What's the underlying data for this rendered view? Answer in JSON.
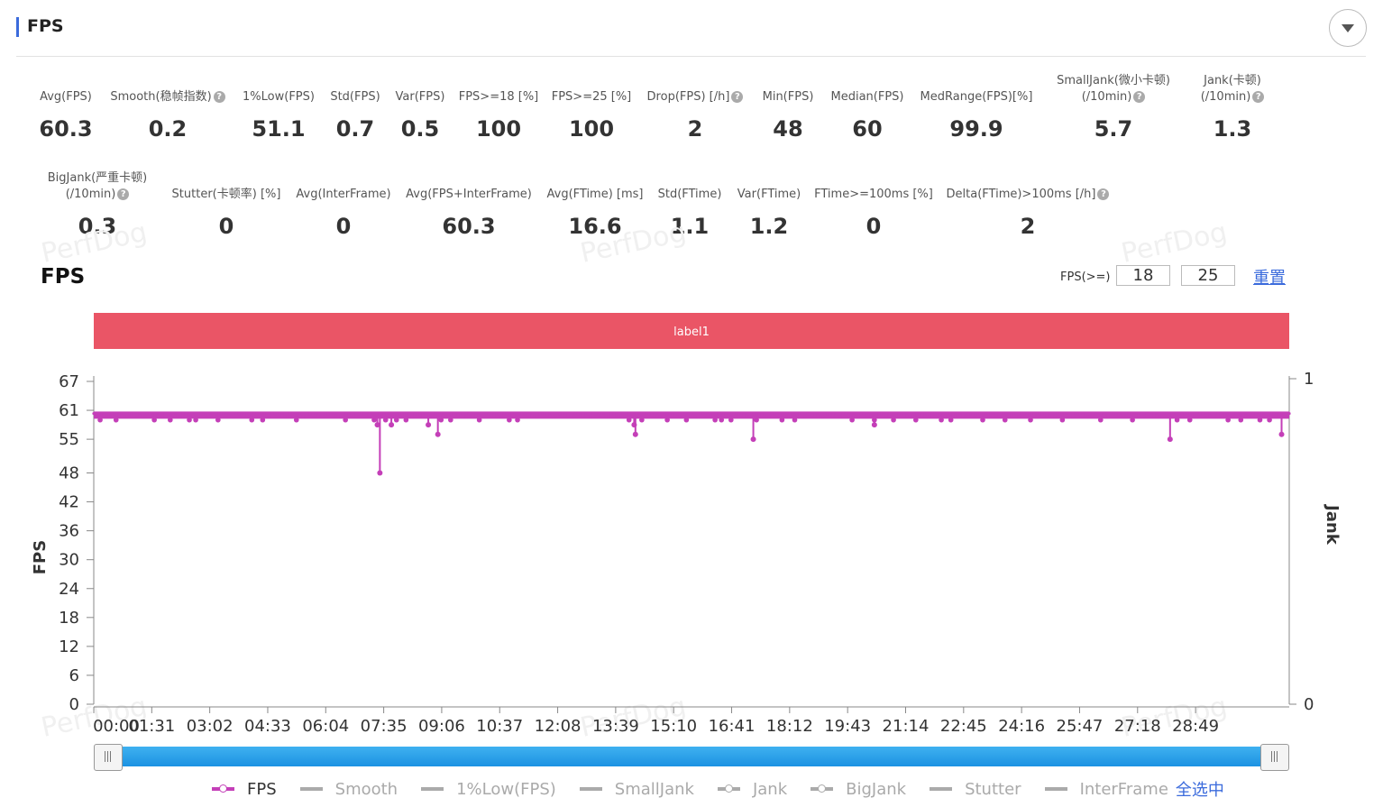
{
  "panel": {
    "title": "FPS"
  },
  "stats_row1": [
    {
      "label": "Avg(FPS)",
      "value": "60.3",
      "help": false
    },
    {
      "label": "Smooth(稳帧指数)",
      "value": "0.2",
      "help": true
    },
    {
      "label": "1%Low(FPS)",
      "value": "51.1",
      "help": false
    },
    {
      "label": "Std(FPS)",
      "value": "0.7",
      "help": false
    },
    {
      "label": "Var(FPS)",
      "value": "0.5",
      "help": false
    },
    {
      "label": "FPS>=18 [%]",
      "value": "100",
      "help": false
    },
    {
      "label": "FPS>=25 [%]",
      "value": "100",
      "help": false
    },
    {
      "label": "Drop(FPS) [/h]",
      "value": "2",
      "help": true
    },
    {
      "label": "Min(FPS)",
      "value": "48",
      "help": false
    },
    {
      "label": "Median(FPS)",
      "value": "60",
      "help": false
    },
    {
      "label": "MedRange(FPS)[%]",
      "value": "99.9",
      "help": false
    },
    {
      "label": "SmallJank(微小卡顿)",
      "label2": "(/10min)",
      "value": "5.7",
      "help": true
    },
    {
      "label": "Jank(卡顿)",
      "label2": "(/10min)",
      "value": "1.3",
      "help": true
    }
  ],
  "stats_row2": [
    {
      "label": "BigJank(严重卡顿)",
      "label2": "(/10min)",
      "value": "0.3",
      "help": true
    },
    {
      "label": "Stutter(卡顿率) [%]",
      "value": "0",
      "help": false
    },
    {
      "label": "Avg(InterFrame)",
      "value": "0",
      "help": false
    },
    {
      "label": "Avg(FPS+InterFrame)",
      "value": "60.3",
      "help": false
    },
    {
      "label": "Avg(FTime) [ms]",
      "value": "16.6",
      "help": false
    },
    {
      "label": "Std(FTime)",
      "value": "1.1",
      "help": false
    },
    {
      "label": "Var(FTime)",
      "value": "1.2",
      "help": false
    },
    {
      "label": "FTime>=100ms [%]",
      "value": "0",
      "help": false
    },
    {
      "label": "Delta(FTime)>100ms [/h]",
      "value": "2",
      "help": true
    }
  ],
  "watermark": "PerfDog",
  "chart_header": {
    "title": "FPS",
    "threshold_label": "FPS(>=)",
    "threshold_1": "18",
    "threshold_2": "25",
    "reset_label": "重置"
  },
  "label_band": "label1",
  "chart_data": {
    "type": "line",
    "xlabel": "",
    "ylabel": "FPS",
    "y2label": "Jank",
    "ylim": [
      0,
      67
    ],
    "y_ticks": [
      "0",
      "6",
      "12",
      "18",
      "24",
      "30",
      "36",
      "42",
      "48",
      "55",
      "61",
      "67"
    ],
    "y2_ticks": [
      "0",
      "1"
    ],
    "x_ticks": [
      "00:00",
      "01:31",
      "03:02",
      "04:33",
      "06:04",
      "07:35",
      "09:06",
      "10:37",
      "12:08",
      "13:39",
      "15:10",
      "16:41",
      "18:12",
      "19:43",
      "21:14",
      "22:45",
      "24:16",
      "25:47",
      "27:18",
      "28:49"
    ],
    "x_range_seconds": [
      0,
      1876
    ],
    "baseline_fps": 60,
    "dips": [
      {
        "t": 449,
        "fps": 48
      },
      {
        "t": 540,
        "fps": 56
      },
      {
        "t": 850,
        "fps": 56
      },
      {
        "t": 1035,
        "fps": 55
      },
      {
        "t": 1689,
        "fps": 55
      },
      {
        "t": 1864,
        "fps": 56
      },
      {
        "t": 445,
        "fps": 58
      },
      {
        "t": 467,
        "fps": 58
      },
      {
        "t": 525,
        "fps": 58
      },
      {
        "t": 848,
        "fps": 58
      },
      {
        "t": 1225,
        "fps": 58
      }
    ],
    "series": [
      {
        "name": "FPS",
        "color": "#c43fb8",
        "visible": true
      }
    ]
  },
  "legend": {
    "items": [
      {
        "name": "FPS",
        "active": true,
        "dot": true
      },
      {
        "name": "Smooth",
        "active": false,
        "dot": false
      },
      {
        "name": "1%Low(FPS)",
        "active": false,
        "dot": false
      },
      {
        "name": "SmallJank",
        "active": false,
        "dot": false
      },
      {
        "name": "Jank",
        "active": false,
        "dot": true
      },
      {
        "name": "BigJank",
        "active": false,
        "dot": true
      },
      {
        "name": "Stutter",
        "active": false,
        "dot": false
      },
      {
        "name": "InterFrame",
        "active": false,
        "dot": false
      }
    ],
    "select_all": "全选中"
  }
}
